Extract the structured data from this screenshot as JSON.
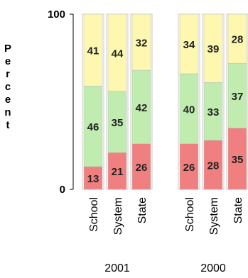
{
  "chart_data": {
    "type": "bar",
    "stacked": true,
    "ylabel": "Percent",
    "ylim": [
      0,
      100
    ],
    "yticks": [
      0,
      100
    ],
    "groups": [
      {
        "label": "2001",
        "categories": [
          "School",
          "System",
          "State"
        ],
        "values": [
          [
            13,
            46,
            41
          ],
          [
            21,
            35,
            44
          ],
          [
            26,
            42,
            32
          ]
        ]
      },
      {
        "label": "2000",
        "categories": [
          "School",
          "System",
          "State"
        ],
        "values": [
          [
            26,
            40,
            34
          ],
          [
            28,
            33,
            39
          ],
          [
            35,
            37,
            28
          ]
        ]
      }
    ],
    "segment_colors": [
      "#f08080",
      "#c0ecb0",
      "#fdf7b0"
    ],
    "grid": false,
    "legend": "none"
  }
}
